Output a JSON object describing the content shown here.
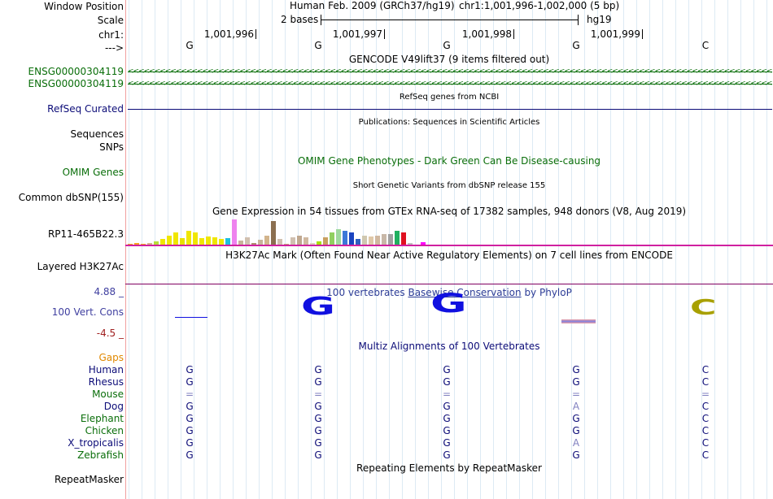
{
  "labels": {
    "window_position": "Window Position",
    "scale": "Scale",
    "chr": "chr1:",
    "strand": "--->",
    "gencode_1": "ENSG00000304119",
    "gencode_2": "ENSG00000304119",
    "refseq": "RefSeq Curated",
    "sequences": "Sequences",
    "snps": "SNPs",
    "omim": "OMIM Genes",
    "dbsnp": "Common dbSNP(155)",
    "gtex": "RP11-465B22.3",
    "h3k27ac": "Layered H3K27Ac",
    "cons_max": "4.88 _",
    "cons": "100 Vert. Cons",
    "cons_min": "-4.5 _",
    "gaps": "Gaps",
    "repeatmasker": "RepeatMasker"
  },
  "header": {
    "assembly": "Human Feb. 2009 (GRCh37/hg19)",
    "position": "chr1:1,001,996-1,002,000 (5 bp)",
    "scale_text": "2 bases",
    "scale_db": "hg19",
    "ticks": [
      "1,001,996",
      "1,001,997",
      "1,001,998",
      "1,001,999"
    ]
  },
  "bases": [
    "G",
    "G",
    "G",
    "G",
    "C"
  ],
  "tracks": {
    "gencode_title": "GENCODE V49lift37 (9 items filtered out)",
    "refseq_title": "RefSeq genes from NCBI",
    "publications_title": "Publications: Sequences in Scientific Articles",
    "omim_title": "OMIM Gene Phenotypes - Dark Green Can Be Disease-causing",
    "dbsnp_title": "Short Genetic Variants from dbSNP release 155",
    "gtex_title": "Gene Expression in 54 tissues from GTEx RNA-seq of 17382 samples, 948 donors (V8, Aug 2019)",
    "h3k27ac_title": "H3K27Ac Mark (Often Found Near Active Regulatory Elements) on 7 cell lines from ENCODE",
    "cons_title_pre": "100 vertebrates ",
    "cons_title_link": "Basewise Conservation",
    "cons_title_post": " by PhyloP",
    "multiz_title": "Multiz Alignments of 100 Vertebrates",
    "repeat_title": "Repeating Elements by RepeatMasker"
  },
  "conservation_letters": [
    "G",
    "G",
    "C"
  ],
  "species": [
    {
      "name": "Human",
      "bases": [
        "G",
        "G",
        "G",
        "G",
        "C"
      ]
    },
    {
      "name": "Rhesus",
      "bases": [
        "G",
        "G",
        "G",
        "G",
        "C"
      ]
    },
    {
      "name": "Mouse",
      "bases": [
        "=",
        "=",
        "=",
        "=",
        "="
      ]
    },
    {
      "name": "Dog",
      "bases": [
        "G",
        "G",
        "G",
        "A",
        "C"
      ]
    },
    {
      "name": "Elephant",
      "bases": [
        "G",
        "G",
        "G",
        "G",
        "C"
      ]
    },
    {
      "name": "Chicken",
      "bases": [
        "G",
        "G",
        "G",
        "G",
        "C"
      ]
    },
    {
      "name": "X_tropicalis",
      "bases": [
        "G",
        "G",
        "G",
        "A",
        "C"
      ]
    },
    {
      "name": "Zebrafish",
      "bases": [
        "G",
        "G",
        "G",
        "G",
        "C"
      ]
    }
  ],
  "gtex_values": [
    2,
    3,
    2,
    3,
    5,
    8,
    12,
    16,
    9,
    18,
    16,
    9,
    11,
    10,
    8,
    9,
    32,
    6,
    10,
    3,
    7,
    12,
    30,
    8,
    2,
    10,
    12,
    10,
    3,
    5,
    10,
    16,
    20,
    18,
    16,
    8,
    12,
    11,
    12,
    14,
    14,
    18,
    16,
    3,
    1,
    4
  ],
  "gtex_colors": [
    "#f5a623",
    "#f5a623",
    "#f5a623",
    "#d9b38c",
    "#b7dd3a",
    "#f0e600",
    "#f0e600",
    "#f0e600",
    "#e8e000",
    "#f0e600",
    "#f0e600",
    "#f0e600",
    "#f0e600",
    "#f0e600",
    "#f0e600",
    "#1ec0e0",
    "#ee82ee",
    "#c8b49a",
    "#d0c0b0",
    "#b09070",
    "#c8b49a",
    "#d2b48c",
    "#8b6f50",
    "#d0c0b0",
    "#c8a080",
    "#d0c0b0",
    "#c0a890",
    "#d0b8a0",
    "#e0d0c0",
    "#a8e000",
    "#c8a060",
    "#90d060",
    "#9ed99e",
    "#3c78d8",
    "#1a44c0",
    "#3060c0",
    "#d0c8b0",
    "#e0c8a8",
    "#d0b8a0",
    "#c8b8a8",
    "#a0a0a0",
    "#20b060",
    "#e01020",
    "#c0c0c0",
    "#f080f0",
    "#ff00ff"
  ],
  "colors": {
    "gencode": "#0a6e0a",
    "refseq": "#0c0c78",
    "omim": "#0a6e0a",
    "cons_blue": "#1010e0",
    "cons_olive": "#a8a000",
    "gaps": "#e08800",
    "species_blue": "#0c0c78",
    "species_green": "#0a6e0a",
    "h3k27ac": "#d020a0"
  }
}
